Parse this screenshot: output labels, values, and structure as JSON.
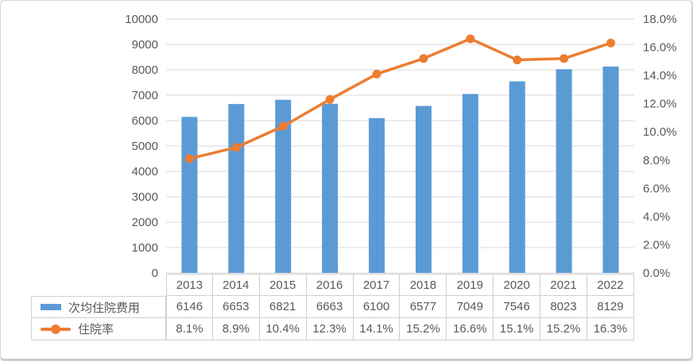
{
  "panel": {
    "background": "#ffffff",
    "border_color": "#d6d6d6"
  },
  "chart_data": {
    "type": "bar",
    "combo": "bar+line",
    "title": "",
    "categories": [
      "2013",
      "2014",
      "2015",
      "2016",
      "2017",
      "2018",
      "2019",
      "2020",
      "2021",
      "2022"
    ],
    "series": [
      {
        "name": "次均住院费用",
        "chart": "bar",
        "axis": "left",
        "color": "#5B9BD5",
        "values": [
          6146,
          6653,
          6821,
          6663,
          6100,
          6577,
          7049,
          7546,
          8023,
          8129
        ],
        "labels": [
          "6146",
          "6653",
          "6821",
          "6663",
          "6100",
          "6577",
          "7049",
          "7546",
          "8023",
          "8129"
        ]
      },
      {
        "name": "住院率",
        "chart": "line",
        "axis": "right",
        "color": "#ED7D31",
        "values": [
          8.1,
          8.9,
          10.4,
          12.3,
          14.1,
          15.2,
          16.6,
          15.1,
          15.2,
          16.3
        ],
        "labels": [
          "8.1%",
          "8.9%",
          "10.4%",
          "12.3%",
          "14.1%",
          "15.2%",
          "16.6%",
          "15.1%",
          "15.2%",
          "16.3%"
        ]
      }
    ],
    "left_axis": {
      "min": 0,
      "max": 10000,
      "step": 1000,
      "tick_labels": [
        "0",
        "1000",
        "2000",
        "3000",
        "4000",
        "5000",
        "6000",
        "7000",
        "8000",
        "9000",
        "10000"
      ]
    },
    "right_axis": {
      "min": 0,
      "max": 18,
      "step": 2,
      "tick_labels": [
        "0.0%",
        "2.0%",
        "4.0%",
        "6.0%",
        "8.0%",
        "10.0%",
        "12.0%",
        "14.0%",
        "16.0%",
        "18.0%"
      ]
    },
    "grid": true,
    "gridline_color": "#d9d9d9",
    "axis_text_color": "#595959",
    "legend_position": "table-left"
  }
}
